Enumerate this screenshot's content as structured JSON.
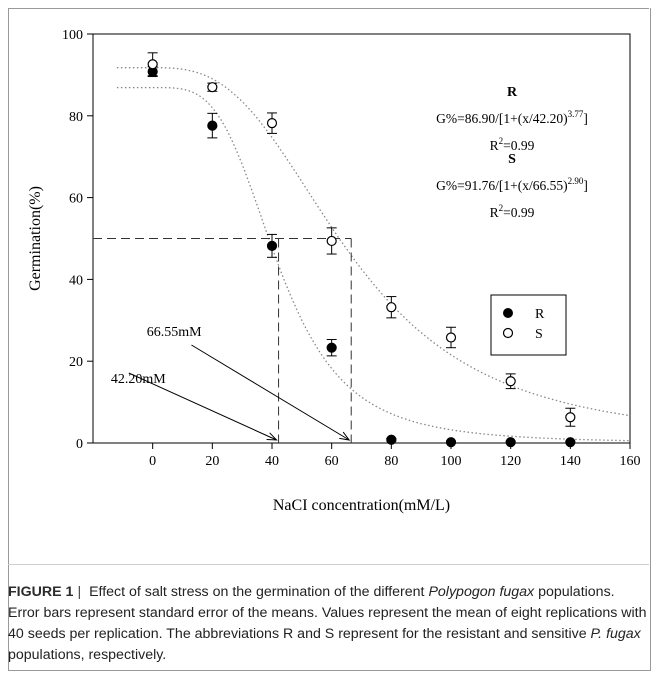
{
  "chart_data": {
    "type": "scatter",
    "xlabel": "NaCI concentration(mM/L)",
    "ylabel": "Germination(%)",
    "xlim": [
      -20,
      160
    ],
    "ylim": [
      0,
      100
    ],
    "xticks": [
      0,
      20,
      40,
      60,
      80,
      100,
      120,
      140,
      160
    ],
    "yticks": [
      0,
      20,
      40,
      60,
      80,
      100
    ],
    "series": [
      {
        "name": "R",
        "marker": "filled-circle",
        "color": "#000000",
        "x": [
          0,
          20,
          40,
          60,
          80,
          100,
          120,
          140
        ],
        "y": [
          90.8,
          77.6,
          48.2,
          23.3,
          0.8,
          0.2,
          0.2,
          0.2
        ],
        "err": [
          1.2,
          3.0,
          2.8,
          2.0,
          0.3,
          0,
          0,
          0
        ],
        "fit": {
          "a": 86.9,
          "x0": 42.2,
          "b": 3.77,
          "equation": "G%=86.90/[1+(x/42.20)",
          "exponent": "3.77",
          "equation_end": "]",
          "r2_prefix": "R",
          "r2_sup": "2",
          "r2_value": "=0.99"
        }
      },
      {
        "name": "S",
        "marker": "open-circle",
        "color": "#000000",
        "x": [
          0,
          20,
          40,
          60,
          80,
          100,
          120,
          140
        ],
        "y": [
          92.6,
          87.0,
          78.2,
          49.4,
          33.2,
          25.8,
          15.1,
          6.3
        ],
        "err": [
          2.8,
          1.0,
          2.5,
          3.2,
          2.6,
          2.5,
          1.8,
          2.2
        ],
        "fit": {
          "a": 91.76,
          "x0": 66.55,
          "b": 2.9,
          "equation": "G%=91.76/[1+(x/66.55)",
          "exponent": "2.90",
          "equation_end": "]",
          "r2_prefix": "R",
          "r2_sup": "2",
          "r2_value": "=0.99"
        }
      }
    ],
    "legend": {
      "placement": "right-middle",
      "entries": [
        "R",
        "S"
      ]
    },
    "annotations": {
      "ec50_r": "42.20mM",
      "ec50_s": "66.55mM",
      "r_block_title": "R",
      "s_block_title": "S"
    },
    "reference_line_y": 50,
    "grid": false
  },
  "caption": {
    "label": "FIGURE 1",
    "bar": "|",
    "t1": " Effect of salt stress on the germination of the different ",
    "italic1": "Polypogon fugax",
    "t2": " populations. Error bars represent standard error of the means. Values represent the mean of eight replications with 40 seeds per replication. The abbreviations R and S represent for the resistant and sensitive ",
    "italic2": "P. fugax",
    "t3": " populations, respectively."
  }
}
